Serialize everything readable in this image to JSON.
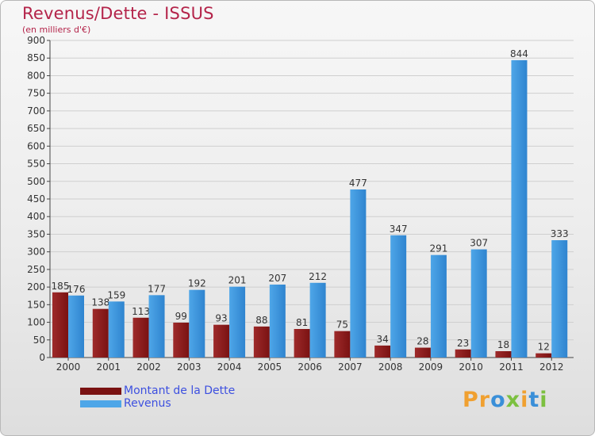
{
  "title": "Revenus/Dette - ISSUS",
  "subtitle": "(en milliers d'€)",
  "logo": "Proxiti",
  "colors": {
    "debt": "#7a1212",
    "debt_light": "#9e2a2a",
    "revenue": "#4ea6e8",
    "revenue_dark": "#2f84cf",
    "title": "#b4244a",
    "legend_text": "#3d50e0"
  },
  "legend": [
    {
      "label": "Montant de la Dette",
      "color": "#7a1212"
    },
    {
      "label": "Revenus",
      "color": "#4ea6e8"
    }
  ],
  "chart_data": {
    "type": "bar",
    "categories": [
      "2000",
      "2001",
      "2002",
      "2003",
      "2004",
      "2005",
      "2006",
      "2007",
      "2008",
      "2009",
      "2010",
      "2011",
      "2012"
    ],
    "series": [
      {
        "name": "Montant de la Dette",
        "values": [
          185,
          138,
          113,
          99,
          93,
          88,
          81,
          75,
          34,
          28,
          23,
          18,
          12
        ]
      },
      {
        "name": "Revenus",
        "values": [
          176,
          159,
          177,
          192,
          201,
          207,
          212,
          477,
          347,
          291,
          307,
          844,
          333
        ]
      }
    ],
    "ylim": [
      0,
      900
    ],
    "yticks": [
      0,
      50,
      100,
      150,
      200,
      250,
      300,
      350,
      400,
      450,
      500,
      550,
      600,
      650,
      700,
      750,
      800,
      850,
      900
    ],
    "grid": true,
    "legend_position": "bottom-left"
  }
}
